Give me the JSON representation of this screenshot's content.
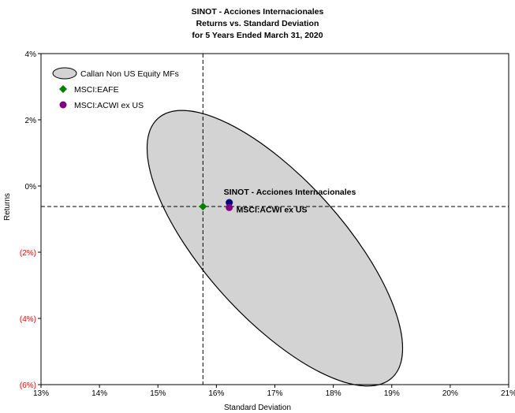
{
  "titles": [
    "SINOT - Acciones Internacionales",
    "Returns vs. Standard Deviation",
    "for 5 Years Ended March 31, 2020"
  ],
  "chart_data": {
    "type": "scatter",
    "title": "SINOT - Acciones Internacionales Returns vs. Standard Deviation for 5 Years Ended March 31, 2020",
    "xlabel": "Standard Deviation",
    "ylabel": "Returns",
    "xlim": [
      13,
      21
    ],
    "ylim": [
      -6,
      4
    ],
    "x_ticks": [
      {
        "value": 13,
        "label": "13%"
      },
      {
        "value": 14,
        "label": "14%"
      },
      {
        "value": 15,
        "label": "15%"
      },
      {
        "value": 16,
        "label": "16%"
      },
      {
        "value": 17,
        "label": "17%"
      },
      {
        "value": 18,
        "label": "18%"
      },
      {
        "value": 19,
        "label": "19%"
      },
      {
        "value": 20,
        "label": "20%"
      },
      {
        "value": 21,
        "label": "21%"
      }
    ],
    "y_ticks": [
      {
        "value": 4,
        "label": "4%"
      },
      {
        "value": 2,
        "label": "2%"
      },
      {
        "value": 0,
        "label": "0%"
      },
      {
        "value": -2,
        "label": "(2%)"
      },
      {
        "value": -4,
        "label": "(4%)"
      },
      {
        "value": -6,
        "label": "(6%)"
      }
    ],
    "negative_tick_color": "#ff0000",
    "grid": false,
    "legend_position": "top-left",
    "reference_lines": {
      "x": 15.77,
      "y": -0.62
    },
    "ellipse": {
      "name": "Callan Non US Equity MFs",
      "color": "#d3d3d3",
      "center": [
        17.0,
        -1.88
      ],
      "x_range": [
        14.65,
        19.55
      ],
      "y_range": [
        -4.75,
        2.6
      ]
    },
    "series": [
      {
        "name": "SINOT - Acciones Internacionales",
        "x": 16.22,
        "y": -0.5,
        "color": "#000080",
        "marker": "circle",
        "show_label": true
      },
      {
        "name": "MSCI:EAFE",
        "x": 15.77,
        "y": -0.62,
        "color": "#008000",
        "marker": "diamond",
        "show_label": false
      },
      {
        "name": "MSCI:ACWI ex US",
        "x": 16.22,
        "y": -0.65,
        "color": "#800080",
        "marker": "circle",
        "show_label": true
      }
    ],
    "legend": [
      {
        "label": "Callan Non US Equity MFs",
        "marker": "ellipse",
        "color": "#d3d3d3"
      },
      {
        "label": "MSCI:EAFE",
        "marker": "diamond",
        "color": "#008000"
      },
      {
        "label": "MSCI:ACWI ex US",
        "marker": "circle",
        "color": "#800080"
      }
    ]
  }
}
